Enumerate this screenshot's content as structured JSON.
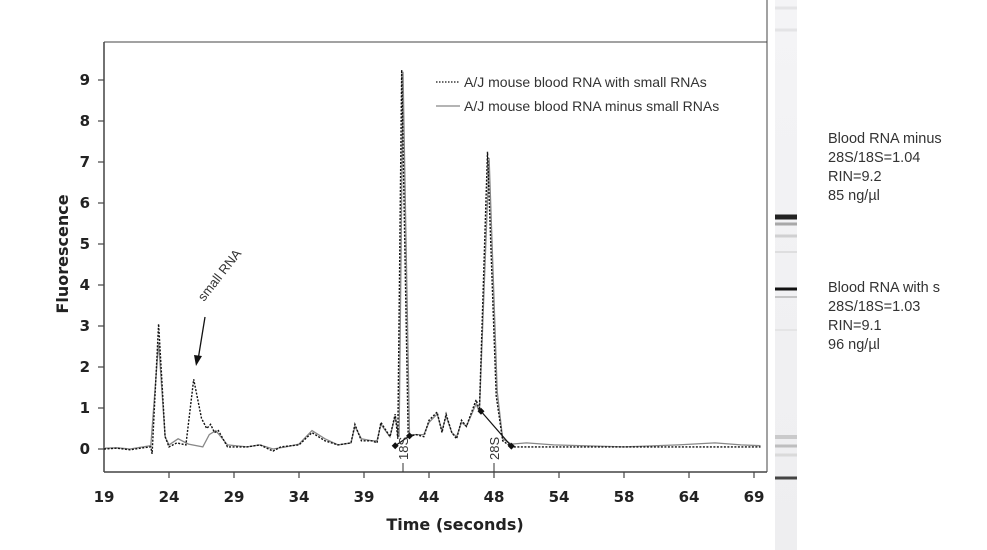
{
  "chart_data": {
    "type": "line",
    "title": "",
    "xlabel": "Time (seconds)",
    "ylabel": "Fluorescence",
    "x_tick_labels": [
      "19",
      "24",
      "29",
      "34",
      "39",
      "44",
      "48",
      "54",
      "58",
      "64",
      "69"
    ],
    "y_ticks": [
      0,
      1,
      2,
      3,
      4,
      5,
      6,
      7,
      8,
      9
    ],
    "ylim": [
      -0.56,
      9.93
    ],
    "xlim": [
      19,
      69.5
    ],
    "grid": false,
    "legend_position": "top-right",
    "series": [
      {
        "name": "A/J mouse blood RNA with small RNAs",
        "style": "dotted",
        "color": "#111111",
        "points": [
          [
            19,
            0
          ],
          [
            20,
            0.02
          ],
          [
            21,
            -0.02
          ],
          [
            22,
            0.03
          ],
          [
            22.6,
            0.05
          ],
          [
            22.7,
            -0.12
          ],
          [
            23.2,
            3.05
          ],
          [
            23.7,
            0.3
          ],
          [
            24,
            0.05
          ],
          [
            24.6,
            0.15
          ],
          [
            25.3,
            0.1
          ],
          [
            25.9,
            1.7
          ],
          [
            26.5,
            0.75
          ],
          [
            26.9,
            0.5
          ],
          [
            27.2,
            0.6
          ],
          [
            27.5,
            0.4
          ],
          [
            27.8,
            0.45
          ],
          [
            28.5,
            0.05
          ],
          [
            30,
            0.05
          ],
          [
            31,
            0.1
          ],
          [
            32,
            -0.05
          ],
          [
            32.6,
            0.05
          ],
          [
            34,
            0.1
          ],
          [
            35,
            0.4
          ],
          [
            36,
            0.2
          ],
          [
            37,
            0.1
          ],
          [
            38,
            0.15
          ],
          [
            38.3,
            0.6
          ],
          [
            38.8,
            0.2
          ],
          [
            39.6,
            0.2
          ],
          [
            40,
            0.15
          ],
          [
            40.3,
            0.65
          ],
          [
            41,
            0.3
          ],
          [
            41.4,
            0.85
          ],
          [
            41.6,
            0.25
          ],
          [
            41.9,
            9.25
          ],
          [
            42.4,
            0.3
          ],
          [
            43,
            0.35
          ],
          [
            43.6,
            0.3
          ],
          [
            44,
            0.7
          ],
          [
            44.5,
            0.9
          ],
          [
            44.8,
            0.4
          ],
          [
            45.05,
            0.85
          ],
          [
            45.4,
            0.4
          ],
          [
            45.7,
            0.25
          ],
          [
            46,
            0.7
          ],
          [
            46.3,
            0.55
          ],
          [
            46.9,
            1.2
          ],
          [
            47.1,
            0.95
          ],
          [
            47.6,
            7.25
          ],
          [
            48.2,
            1.3
          ],
          [
            48.8,
            0.2
          ],
          [
            49.6,
            0.05
          ],
          [
            52,
            0.05
          ],
          [
            56,
            0.05
          ],
          [
            60,
            0.05
          ],
          [
            64,
            0.05
          ],
          [
            69.5,
            0.05
          ]
        ]
      },
      {
        "name": "A/J mouse blood RNA minus small RNAs",
        "style": "solid",
        "color": "#888888",
        "points": [
          [
            19,
            0.02
          ],
          [
            20,
            0.03
          ],
          [
            21,
            0
          ],
          [
            22,
            0.05
          ],
          [
            22.6,
            0.08
          ],
          [
            23.2,
            2.6
          ],
          [
            23.7,
            0.3
          ],
          [
            24,
            0.1
          ],
          [
            24.7,
            0.25
          ],
          [
            25.5,
            0.12
          ],
          [
            26.6,
            0.05
          ],
          [
            27.1,
            0.35
          ],
          [
            27.6,
            0.45
          ],
          [
            28.5,
            0.1
          ],
          [
            30,
            0.05
          ],
          [
            31,
            0.1
          ],
          [
            32,
            0
          ],
          [
            33,
            0.05
          ],
          [
            34,
            0.12
          ],
          [
            35,
            0.45
          ],
          [
            36,
            0.25
          ],
          [
            37,
            0.1
          ],
          [
            38,
            0.15
          ],
          [
            38.3,
            0.55
          ],
          [
            38.8,
            0.25
          ],
          [
            39.6,
            0.2
          ],
          [
            40,
            0.2
          ],
          [
            40.3,
            0.6
          ],
          [
            41,
            0.3
          ],
          [
            41.4,
            0.8
          ],
          [
            41.7,
            0.3
          ],
          [
            42,
            9.2
          ],
          [
            42.5,
            0.35
          ],
          [
            43,
            0.35
          ],
          [
            43.6,
            0.35
          ],
          [
            44,
            0.65
          ],
          [
            44.5,
            0.85
          ],
          [
            44.8,
            0.45
          ],
          [
            45.05,
            0.8
          ],
          [
            45.4,
            0.4
          ],
          [
            45.7,
            0.3
          ],
          [
            46,
            0.65
          ],
          [
            46.3,
            0.55
          ],
          [
            46.9,
            1.1
          ],
          [
            47.1,
            0.9
          ],
          [
            47.7,
            7.1
          ],
          [
            48.3,
            1.4
          ],
          [
            48.8,
            0.25
          ],
          [
            49.6,
            0.12
          ],
          [
            51,
            0.15
          ],
          [
            53.5,
            0.1
          ],
          [
            58,
            0.05
          ],
          [
            63,
            0.1
          ],
          [
            66,
            0.15
          ],
          [
            68,
            0.1
          ],
          [
            69.5,
            0.08
          ]
        ]
      }
    ],
    "baseline_markers": [
      {
        "label": "18S",
        "x": 42,
        "from": [
          41.4,
          0.08
        ],
        "to": [
          42.5,
          0.32
        ]
      },
      {
        "label": "28S",
        "x": 48,
        "from": [
          47.2,
          0.92
        ],
        "to": [
          49.6,
          0.07
        ]
      }
    ],
    "annotations": [
      {
        "text": "small RNA",
        "target": [
          25.9,
          2.0
        ]
      }
    ]
  },
  "side_panel": {
    "blocks": [
      {
        "lines": [
          "Blood RNA minus",
          "28S/18S=1.04",
          "RIN=9.2",
          "85 ng/µl"
        ]
      },
      {
        "lines": [
          "Blood RNA with s",
          "28S/18S=1.03",
          "RIN=9.1",
          "96 ng/µl"
        ]
      }
    ]
  }
}
